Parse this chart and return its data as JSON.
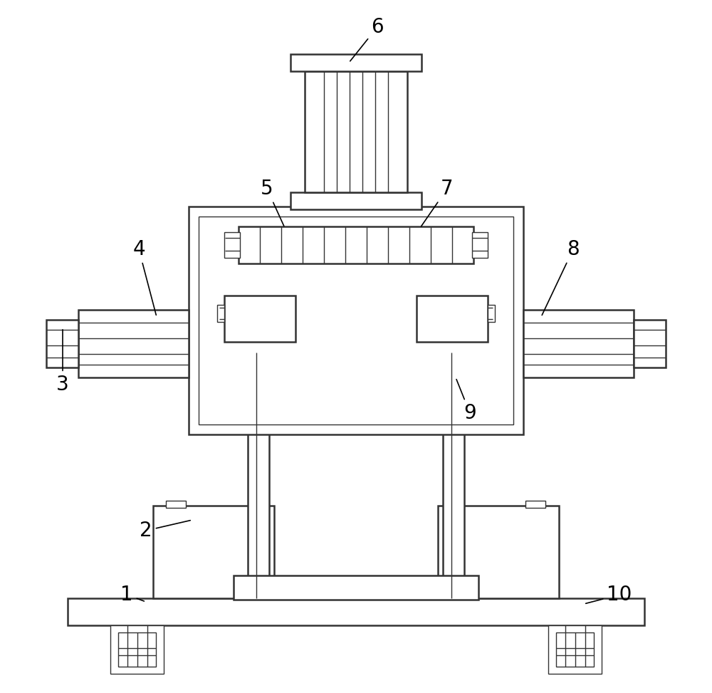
{
  "bg_color": "#ffffff",
  "line_color": "#333333",
  "line_width": 1.8,
  "thin_line": 1.0,
  "label_fontsize": 20
}
